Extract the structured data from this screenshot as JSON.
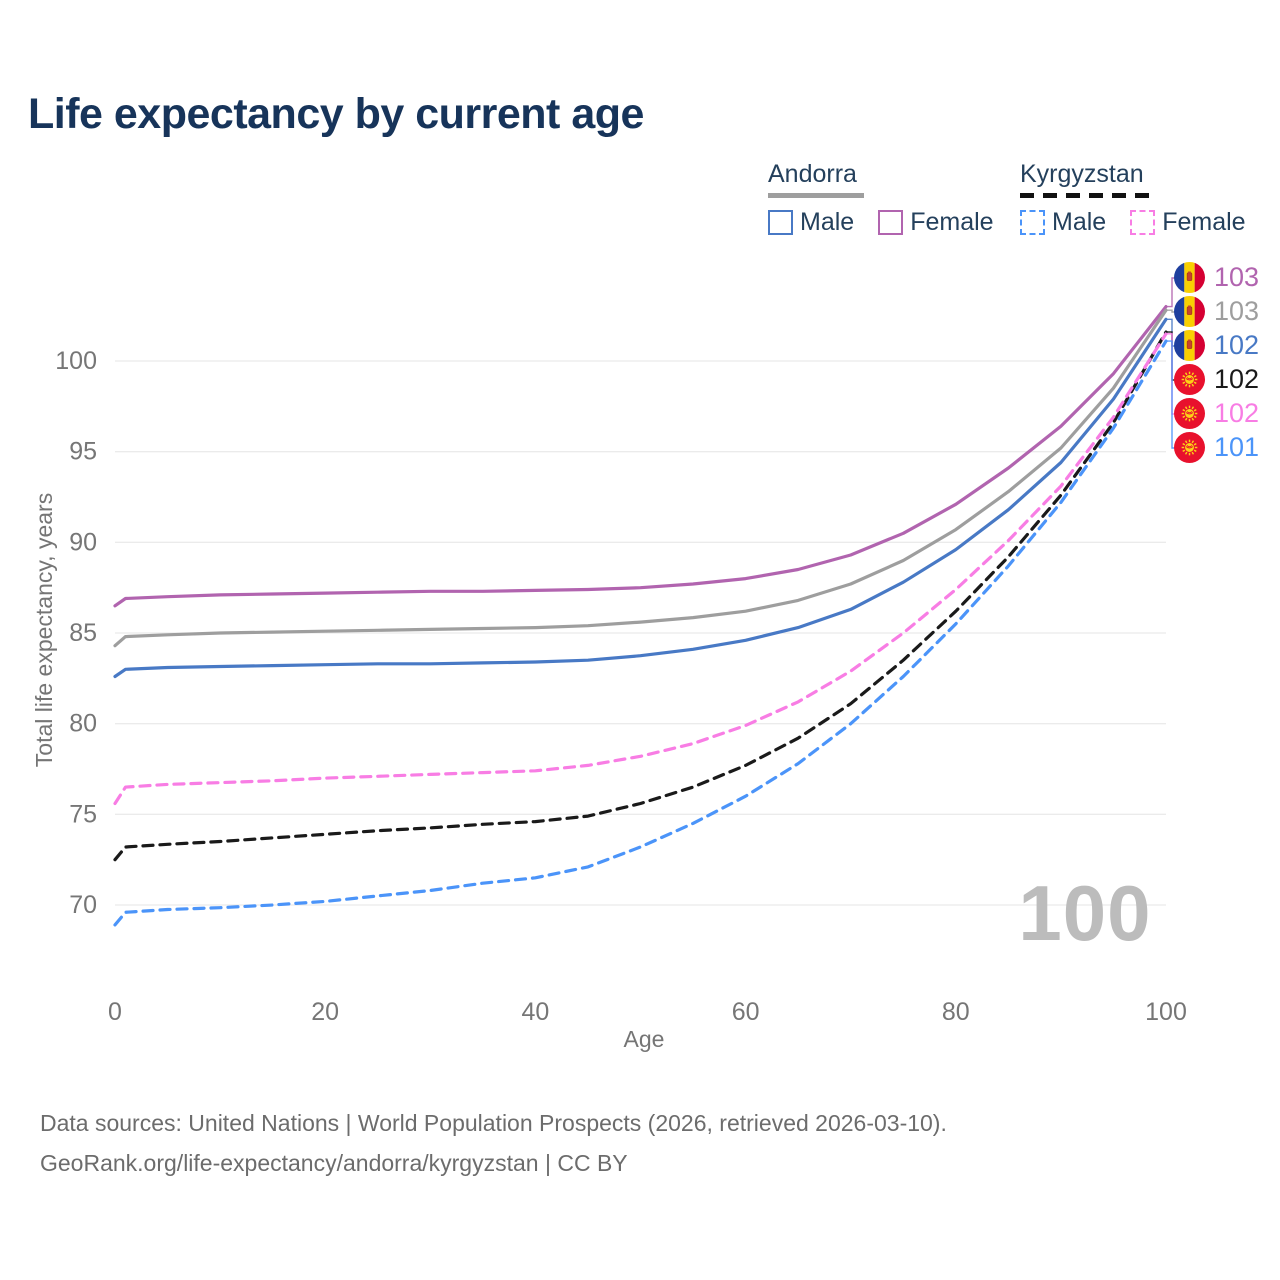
{
  "title": "Life expectancy by current age",
  "age_counter": "100",
  "legend": {
    "groups": [
      {
        "country": "Andorra",
        "style": "solid",
        "line_color": "#9e9e9e",
        "items": [
          {
            "label": "Male",
            "color": "#4879c5"
          },
          {
            "label": "Female",
            "color": "#b164af"
          }
        ]
      },
      {
        "country": "Kyrgyzstan",
        "style": "dashed",
        "line_color": "#111111",
        "items": [
          {
            "label": "Male",
            "color": "#4b94f9"
          },
          {
            "label": "Female",
            "color": "#f87de4"
          }
        ]
      }
    ]
  },
  "footer": {
    "line1": "Data sources: United Nations | World Population Prospects (2026, retrieved 2026-03-10).",
    "line2": "GeoRank.org/life-expectancy/andorra/kyrgyzstan | CC BY"
  },
  "chart_data": {
    "type": "line",
    "title": "Life expectancy by current age",
    "xlabel": "Age",
    "ylabel": "Total life expectancy, years",
    "x_ticks": [
      0,
      20,
      40,
      60,
      80,
      100
    ],
    "y_ticks": [
      70,
      75,
      80,
      85,
      90,
      95,
      100
    ],
    "xlim": [
      0,
      100
    ],
    "ylim": [
      68,
      104
    ],
    "grid": "horizontal",
    "legend_position": "top-right",
    "x": [
      0,
      1,
      5,
      10,
      15,
      20,
      25,
      30,
      35,
      40,
      45,
      50,
      55,
      60,
      65,
      70,
      75,
      80,
      85,
      90,
      95,
      100
    ],
    "series": [
      {
        "name": "Andorra Female",
        "country": "Andorra",
        "sex": "Female",
        "color": "#b164af",
        "dash": false,
        "flag": "andorra",
        "end_label": "103",
        "label_color": "#b164af",
        "rank": 0,
        "values": [
          86.5,
          86.9,
          87.0,
          87.1,
          87.15,
          87.2,
          87.25,
          87.3,
          87.3,
          87.35,
          87.4,
          87.5,
          87.7,
          88.0,
          88.5,
          89.3,
          90.5,
          92.1,
          94.1,
          96.4,
          99.3,
          103.0
        ]
      },
      {
        "name": "Andorra Total",
        "country": "Andorra",
        "sex": "Total",
        "color": "#9e9e9e",
        "dash": false,
        "flag": "andorra",
        "end_label": "103",
        "label_color": "#9e9e9e",
        "rank": 1,
        "values": [
          84.3,
          84.8,
          84.9,
          85.0,
          85.05,
          85.1,
          85.15,
          85.2,
          85.25,
          85.3,
          85.4,
          85.6,
          85.85,
          86.2,
          86.8,
          87.7,
          89.0,
          90.7,
          92.8,
          95.2,
          98.5,
          102.8
        ]
      },
      {
        "name": "Andorra Male",
        "country": "Andorra",
        "sex": "Male",
        "color": "#4879c5",
        "dash": false,
        "flag": "andorra",
        "end_label": "102",
        "label_color": "#4879c5",
        "rank": 2,
        "values": [
          82.6,
          83.0,
          83.1,
          83.15,
          83.2,
          83.25,
          83.3,
          83.3,
          83.35,
          83.4,
          83.5,
          83.75,
          84.1,
          84.6,
          85.3,
          86.3,
          87.8,
          89.6,
          91.8,
          94.4,
          97.9,
          102.3
        ]
      },
      {
        "name": "Kyrgyzstan Total",
        "country": "Kyrgyzstan",
        "sex": "Total",
        "color": "#1a1a1a",
        "dash": true,
        "flag": "kyrgyzstan",
        "end_label": "102",
        "label_color": "#1a1a1a",
        "rank": 3,
        "values": [
          72.5,
          73.2,
          73.35,
          73.5,
          73.7,
          73.9,
          74.1,
          74.25,
          74.45,
          74.6,
          74.9,
          75.6,
          76.5,
          77.7,
          79.2,
          81.1,
          83.5,
          86.2,
          89.2,
          92.6,
          96.6,
          101.6
        ]
      },
      {
        "name": "Kyrgyzstan Female",
        "country": "Kyrgyzstan",
        "sex": "Female",
        "color": "#f87de4",
        "dash": true,
        "flag": "kyrgyzstan",
        "end_label": "102",
        "label_color": "#f87de4",
        "rank": 4,
        "values": [
          75.6,
          76.5,
          76.65,
          76.75,
          76.85,
          77.0,
          77.1,
          77.2,
          77.3,
          77.4,
          77.7,
          78.2,
          78.9,
          79.9,
          81.2,
          82.9,
          85.0,
          87.4,
          90.1,
          93.1,
          96.9,
          101.5
        ]
      },
      {
        "name": "Kyrgyzstan Male",
        "country": "Kyrgyzstan",
        "sex": "Male",
        "color": "#4b94f9",
        "dash": true,
        "flag": "kyrgyzstan",
        "end_label": "101",
        "label_color": "#4b94f9",
        "rank": 5,
        "values": [
          68.9,
          69.6,
          69.75,
          69.85,
          70.0,
          70.2,
          70.5,
          70.8,
          71.2,
          71.5,
          72.1,
          73.2,
          74.5,
          76.0,
          77.8,
          80.0,
          82.6,
          85.5,
          88.7,
          92.2,
          96.3,
          101.1
        ]
      }
    ]
  }
}
